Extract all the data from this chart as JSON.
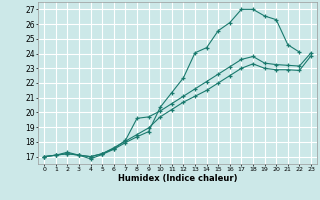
{
  "xlabel": "Humidex (Indice chaleur)",
  "xlim": [
    -0.5,
    23.5
  ],
  "ylim": [
    16.5,
    27.5
  ],
  "xticks": [
    0,
    1,
    2,
    3,
    4,
    5,
    6,
    7,
    8,
    9,
    10,
    11,
    12,
    13,
    14,
    15,
    16,
    17,
    18,
    19,
    20,
    21,
    22,
    23
  ],
  "yticks": [
    17,
    18,
    19,
    20,
    21,
    22,
    23,
    24,
    25,
    26,
    27
  ],
  "bg_color": "#cce8e8",
  "grid_color": "#ffffff",
  "line_color": "#1a7a6e",
  "lines": [
    {
      "x": [
        0,
        1,
        2,
        3,
        4,
        5,
        6,
        7,
        8,
        9,
        10,
        11,
        12,
        13,
        14,
        15,
        16,
        17,
        18,
        19,
        20,
        21,
        22
      ],
      "y": [
        17.0,
        17.1,
        17.3,
        17.1,
        16.85,
        17.15,
        17.5,
        17.95,
        18.35,
        18.7,
        20.35,
        21.35,
        22.35,
        24.05,
        24.4,
        25.55,
        26.1,
        27.0,
        27.0,
        26.55,
        26.3,
        24.6,
        24.1
      ]
    },
    {
      "x": [
        0,
        1,
        2,
        3,
        4,
        5,
        6,
        7,
        8,
        9,
        10,
        11,
        12,
        13,
        14,
        15,
        16,
        17,
        18,
        19,
        20,
        21,
        22,
        23
      ],
      "y": [
        17.0,
        17.1,
        17.2,
        17.1,
        17.0,
        17.2,
        17.55,
        18.1,
        19.6,
        19.7,
        20.1,
        20.6,
        21.1,
        21.6,
        22.1,
        22.6,
        23.1,
        23.6,
        23.8,
        23.35,
        23.25,
        23.2,
        23.15,
        24.05
      ]
    },
    {
      "x": [
        0,
        1,
        2,
        3,
        4,
        5,
        6,
        7,
        8,
        9,
        10,
        11,
        12,
        13,
        14,
        15,
        16,
        17,
        18,
        19,
        20,
        21,
        22,
        23
      ],
      "y": [
        17.0,
        17.1,
        17.2,
        17.1,
        17.0,
        17.2,
        17.6,
        18.05,
        18.5,
        18.95,
        19.7,
        20.2,
        20.7,
        21.1,
        21.5,
        22.0,
        22.5,
        23.0,
        23.3,
        23.0,
        22.9,
        22.9,
        22.85,
        23.85
      ]
    }
  ]
}
